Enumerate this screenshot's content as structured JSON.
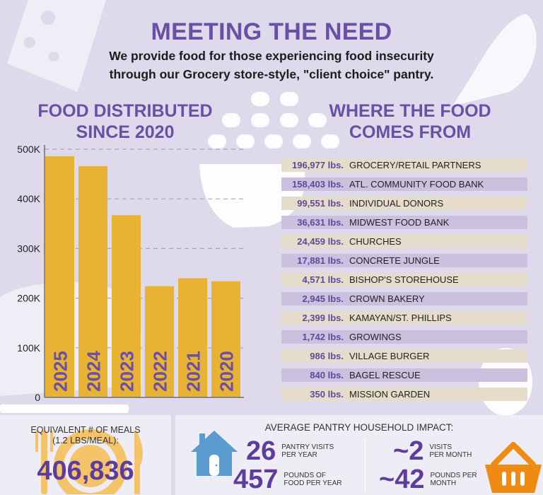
{
  "header": {
    "title": "MEETING THE NEED",
    "subtitle_line1": "We provide food for those experiencing food insecurity",
    "subtitle_line2": "through our Grocery store-style, \"client choice\" pantry."
  },
  "distributed": {
    "heading_line1": "FOOD DISTRIBUTED",
    "heading_line2": "SINCE 2020"
  },
  "sources": {
    "heading_line1": "WHERE THE FOOD",
    "heading_line2": "COMES FROM",
    "items": [
      {
        "lbs": "196,977 lbs.",
        "name": "GROCERY/RETAIL PARTNERS"
      },
      {
        "lbs": "158,403 lbs.",
        "name": "ATL. COMMUNITY FOOD BANK"
      },
      {
        "lbs": "99,551 lbs.",
        "name": "INDIVIDUAL DONORS"
      },
      {
        "lbs": "36,631 lbs.",
        "name": "MIDWEST FOOD BANK"
      },
      {
        "lbs": "24,459 lbs.",
        "name": "CHURCHES"
      },
      {
        "lbs": "17,881 lbs.",
        "name": "CONCRETE JUNGLE"
      },
      {
        "lbs": "4,571 lbs.",
        "name": "BISHOP'S STOREHOUSE"
      },
      {
        "lbs": "2,945 lbs.",
        "name": "CROWN BAKERY"
      },
      {
        "lbs": "2,399 lbs.",
        "name": "KAMAYAN/ST. PHILLIPS"
      },
      {
        "lbs": "1,742 lbs.",
        "name": "GROWINGS"
      },
      {
        "lbs": "986 lbs.",
        "name": "VILLAGE BURGER"
      },
      {
        "lbs": "840 lbs.",
        "name": "BAGEL RESCUE"
      },
      {
        "lbs": "350 lbs.",
        "name": "MISSION GARDEN"
      }
    ]
  },
  "meals": {
    "label_line1": "EQUIVALENT # OF MEALS",
    "label_line2": "(1.2 LBS/MEAL):",
    "value": "406,836",
    "icon": "plate-fork-knife-icon"
  },
  "impact": {
    "title": "AVERAGE PANTRY HOUSEHOLD IMPACT:",
    "stats": [
      {
        "num": "26",
        "label_line1": "PANTRY VISITS",
        "label_line2": "PER YEAR"
      },
      {
        "num": "457",
        "label_line1": "POUNDS OF",
        "label_line2": "FOOD PER YEAR"
      },
      {
        "num": "~2",
        "label_line1": "VISITS",
        "label_line2": "PER MONTH"
      },
      {
        "num": "~42",
        "label_line1": "POUNDS PER",
        "label_line2": "MONTH"
      }
    ],
    "left_icon": "house-icon",
    "right_icon": "basket-icon"
  },
  "colors": {
    "bar": "#e8b232",
    "year_label": "#6a4fa6",
    "house": "#5b9bd0",
    "basket": "#ef8a12",
    "plate": "#f5c46a"
  },
  "chart_data": {
    "type": "bar",
    "title": "FOOD DISTRIBUTED SINCE 2020",
    "categories": [
      "2025",
      "2024",
      "2023",
      "2022",
      "2021",
      "2020"
    ],
    "values": [
      486000,
      466000,
      367000,
      224000,
      240000,
      234000
    ],
    "xlabel": "",
    "ylabel": "",
    "ylim": [
      0,
      500000
    ],
    "yticks": [
      0,
      100000,
      200000,
      300000,
      400000,
      500000
    ],
    "ytick_labels": [
      "0",
      "100K",
      "200K",
      "300K",
      "400K",
      "500K"
    ],
    "grid": true,
    "legend": "none"
  }
}
